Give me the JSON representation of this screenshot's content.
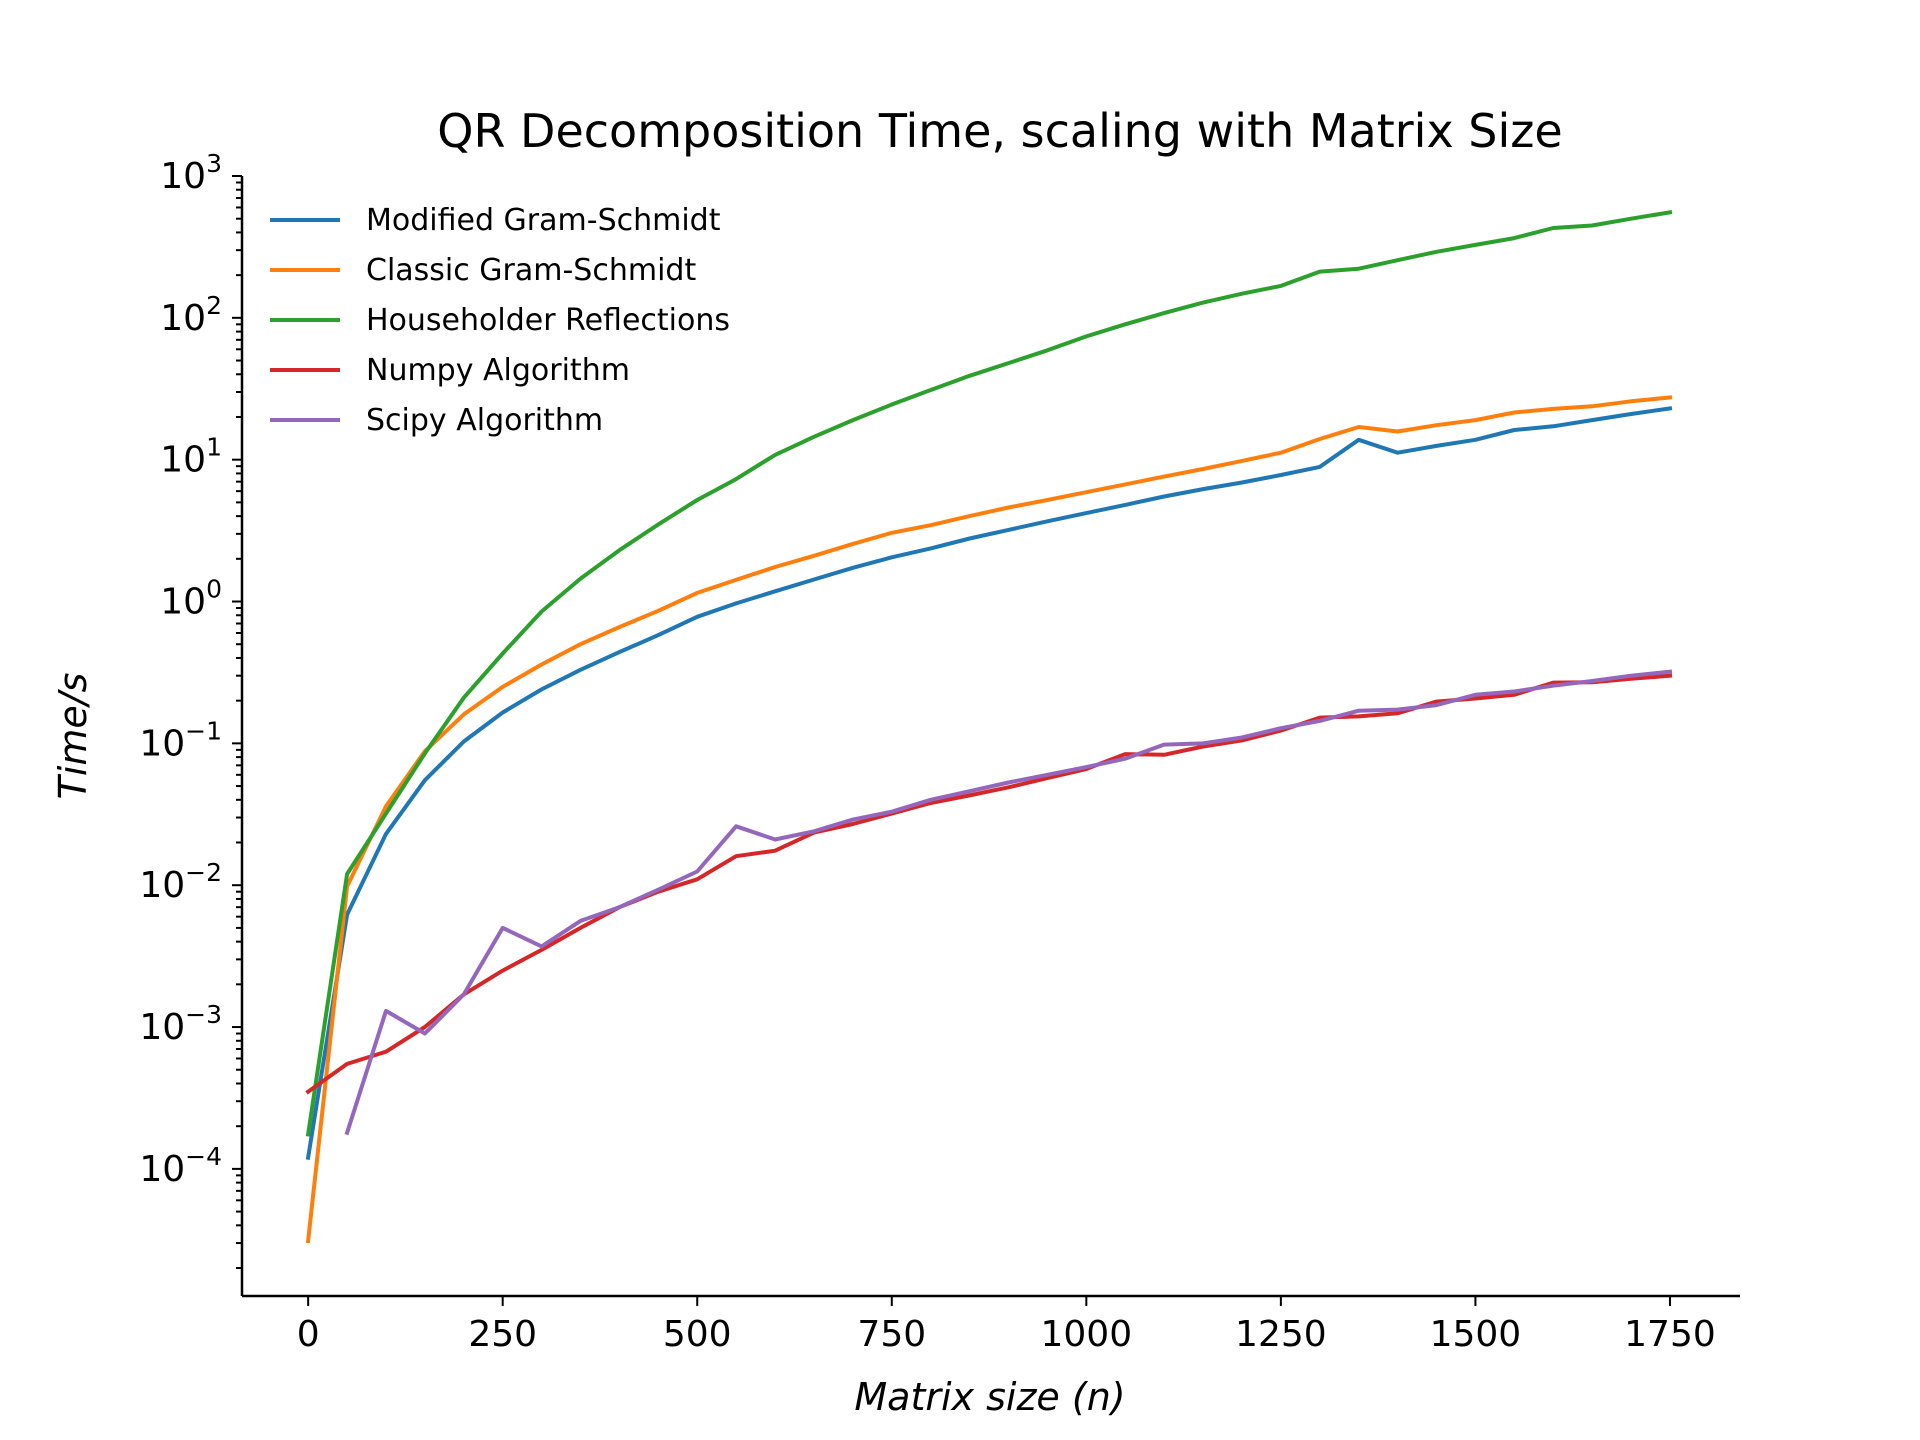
{
  "chart_data": {
    "type": "line",
    "title": "QR Decomposition Time, scaling with Matrix Size",
    "xlabel_prefix": "Matrix size (",
    "xlabel_var": "n",
    "xlabel_suffix": ")",
    "ylabel": "Time/s",
    "yscale": "log",
    "xlim": [
      -85,
      1840
    ],
    "ylim": [
      1.27e-05,
      1000
    ],
    "xticks": [
      0,
      250,
      500,
      750,
      1000,
      1250,
      1500,
      1750
    ],
    "xtick_labels": [
      "0",
      "250",
      "500",
      "750",
      "1000",
      "1250",
      "1500",
      "1750"
    ],
    "yticks": [
      {
        "value": 0.0001,
        "base": "10",
        "exp": "−4"
      },
      {
        "value": 0.001,
        "base": "10",
        "exp": "−3"
      },
      {
        "value": 0.01,
        "base": "10",
        "exp": "−2"
      },
      {
        "value": 0.1,
        "base": "10",
        "exp": "−1"
      },
      {
        "value": 1,
        "base": "10",
        "exp": "0"
      },
      {
        "value": 10,
        "base": "10",
        "exp": "1"
      },
      {
        "value": 100,
        "base": "10",
        "exp": "2"
      },
      {
        "value": 1000,
        "base": "10",
        "exp": "3"
      }
    ],
    "grid": false,
    "legend_position": "top-left",
    "series": [
      {
        "name": "Modified Gram-Schmidt",
        "color": "#1f77b4",
        "x": [
          0,
          50,
          100,
          150,
          200,
          250,
          300,
          350,
          400,
          450,
          500,
          550,
          600,
          650,
          700,
          750,
          800,
          850,
          900,
          950,
          1000,
          1050,
          1100,
          1150,
          1200,
          1250,
          1300,
          1350,
          1400,
          1450,
          1500,
          1550,
          1600,
          1650,
          1700,
          1750
        ],
        "y": [
          0.00012,
          0.0062,
          0.023,
          0.055,
          0.103,
          0.165,
          0.24,
          0.33,
          0.44,
          0.58,
          0.78,
          0.97,
          1.18,
          1.43,
          1.73,
          2.05,
          2.37,
          2.78,
          3.2,
          3.68,
          4.2,
          4.8,
          5.5,
          6.2,
          6.9,
          7.8,
          8.9,
          13.8,
          11.2,
          12.5,
          13.8,
          16.2,
          17.2,
          19.0,
          21.0,
          23.0
        ]
      },
      {
        "name": "Classic Gram-Schmidt",
        "color": "#ff7f0e",
        "x": [
          0,
          50,
          100,
          150,
          200,
          250,
          300,
          350,
          400,
          450,
          500,
          550,
          600,
          650,
          700,
          750,
          800,
          850,
          900,
          950,
          1000,
          1050,
          1100,
          1150,
          1200,
          1250,
          1300,
          1350,
          1400,
          1450,
          1500,
          1550,
          1600,
          1650,
          1700,
          1750
        ],
        "y": [
          3.1e-05,
          0.0098,
          0.036,
          0.088,
          0.16,
          0.25,
          0.36,
          0.5,
          0.66,
          0.86,
          1.15,
          1.42,
          1.75,
          2.1,
          2.55,
          3.05,
          3.45,
          4.0,
          4.6,
          5.2,
          5.9,
          6.7,
          7.6,
          8.6,
          9.8,
          11.2,
          14.0,
          17.0,
          15.8,
          17.5,
          19.0,
          21.5,
          22.8,
          23.8,
          25.8,
          27.5
        ]
      },
      {
        "name": "Householder Reflections",
        "color": "#2ca02c",
        "x": [
          0,
          50,
          100,
          150,
          200,
          250,
          300,
          350,
          400,
          450,
          500,
          550,
          600,
          650,
          700,
          750,
          800,
          850,
          900,
          950,
          1000,
          1050,
          1100,
          1150,
          1200,
          1250,
          1300,
          1350,
          1400,
          1450,
          1500,
          1550,
          1600,
          1650,
          1700,
          1750
        ],
        "y": [
          0.000175,
          0.012,
          0.032,
          0.085,
          0.21,
          0.43,
          0.85,
          1.45,
          2.3,
          3.5,
          5.2,
          7.3,
          10.8,
          14.5,
          19.0,
          24.5,
          31.0,
          39.0,
          48.0,
          59.0,
          74.0,
          90.0,
          108.0,
          128.0,
          148.0,
          168.0,
          212.0,
          222.0,
          255.0,
          292.0,
          327.0,
          365.0,
          430.0,
          448.0,
          500.0,
          555.0
        ]
      },
      {
        "name": "Numpy Algorithm",
        "color": "#d62728",
        "x": [
          0,
          50,
          100,
          150,
          200,
          250,
          300,
          350,
          400,
          450,
          500,
          550,
          600,
          650,
          700,
          750,
          800,
          850,
          900,
          950,
          1000,
          1050,
          1100,
          1150,
          1200,
          1250,
          1300,
          1350,
          1400,
          1450,
          1500,
          1550,
          1600,
          1650,
          1700,
          1750
        ],
        "y": [
          0.00035,
          0.00055,
          0.00067,
          0.001,
          0.0017,
          0.0025,
          0.0035,
          0.005,
          0.007,
          0.009,
          0.011,
          0.016,
          0.0175,
          0.0235,
          0.027,
          0.032,
          0.038,
          0.043,
          0.049,
          0.057,
          0.066,
          0.084,
          0.083,
          0.095,
          0.105,
          0.123,
          0.152,
          0.155,
          0.163,
          0.197,
          0.207,
          0.22,
          0.268,
          0.27,
          0.285,
          0.3
        ]
      },
      {
        "name": "Scipy Algorithm",
        "color": "#9467bd",
        "x": [
          50,
          100,
          150,
          200,
          250,
          300,
          350,
          400,
          450,
          500,
          550,
          600,
          650,
          700,
          750,
          800,
          850,
          900,
          950,
          1000,
          1050,
          1100,
          1150,
          1200,
          1250,
          1300,
          1350,
          1400,
          1450,
          1500,
          1550,
          1600,
          1650,
          1700,
          1750
        ],
        "y": [
          0.00018,
          0.0013,
          0.0009,
          0.0017,
          0.005,
          0.0037,
          0.0056,
          0.007,
          0.0093,
          0.0125,
          0.026,
          0.021,
          0.024,
          0.029,
          0.033,
          0.04,
          0.046,
          0.053,
          0.06,
          0.068,
          0.078,
          0.098,
          0.1,
          0.11,
          0.128,
          0.144,
          0.17,
          0.173,
          0.186,
          0.22,
          0.232,
          0.255,
          0.275,
          0.3,
          0.32
        ]
      }
    ]
  }
}
